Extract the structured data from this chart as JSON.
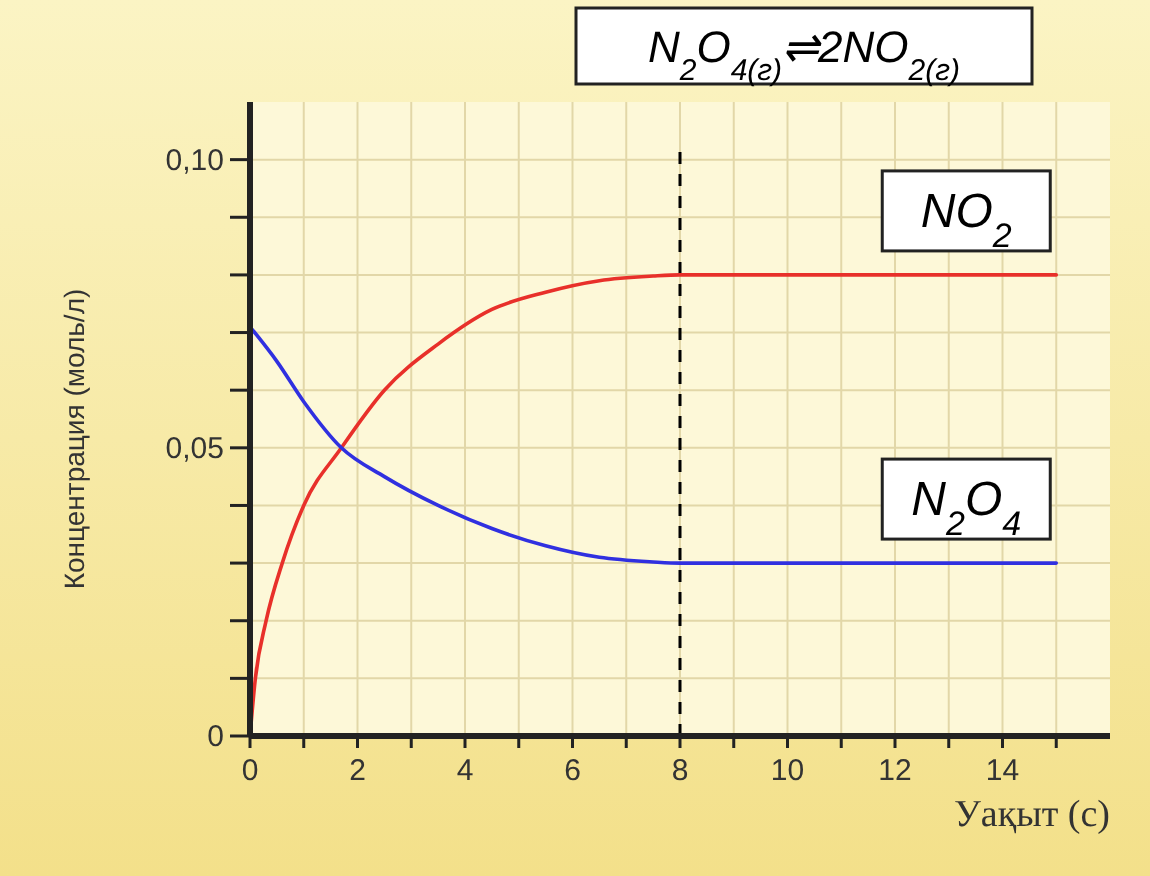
{
  "chart_data": {
    "type": "line",
    "title": "N$_{2}$O$_{4(г)}$⇌2NO$_{2(г)}$",
    "xlabel": "Уақыт (с)",
    "ylabel": "Концентрация (моль/л)",
    "xlim": [
      0,
      16
    ],
    "ylim": [
      0,
      0.11
    ],
    "xticks": [
      0,
      {
        "value": 1,
        "label": null
      },
      2,
      {
        "value": 3,
        "label": null
      },
      4,
      {
        "value": 5,
        "label": null
      },
      6,
      {
        "value": 7,
        "label": null
      },
      8,
      {
        "value": 9,
        "label": null
      },
      10,
      {
        "value": 11,
        "label": null
      },
      12,
      {
        "value": 13,
        "label": null
      },
      14,
      {
        "value": 15,
        "label": null
      }
    ],
    "yticks": [
      {
        "value": 0,
        "label": "0"
      },
      {
        "value": 0.01,
        "label": null
      },
      {
        "value": 0.02,
        "label": null
      },
      {
        "value": 0.03,
        "label": null
      },
      {
        "value": 0.04,
        "label": null
      },
      {
        "value": 0.05,
        "label": "0,05"
      },
      {
        "value": 0.06,
        "label": null
      },
      {
        "value": 0.07,
        "label": null
      },
      {
        "value": 0.08,
        "label": null
      },
      {
        "value": 0.09,
        "label": null
      },
      {
        "value": 0.1,
        "label": "0,10"
      }
    ],
    "grid": true,
    "marker": "none",
    "line_style": "solid",
    "series": [
      {
        "name": "NO$_{2}$",
        "color": "#e8302a",
        "x": [
          0,
          0.1,
          0.3,
          0.6,
          1,
          1.7,
          2.5,
          3.5,
          4.5,
          5.5,
          6.5,
          7.5,
          8,
          15
        ],
        "values": [
          0,
          0.01,
          0.02,
          0.03,
          0.04,
          0.05,
          0.06,
          0.068,
          0.074,
          0.077,
          0.079,
          0.0798,
          0.08,
          0.08
        ]
      },
      {
        "name": "N$_{2}$O$_{4}$",
        "color": "#3030e0",
        "x": [
          0,
          0.5,
          1,
          1.7,
          2.5,
          3.5,
          4.5,
          5.5,
          6.5,
          7.5,
          8,
          15
        ],
        "values": [
          0.071,
          0.065,
          0.058,
          0.05,
          0.045,
          0.04,
          0.036,
          0.033,
          0.031,
          0.0302,
          0.03,
          0.03
        ]
      }
    ],
    "ref_lines": [
      {
        "axis": "x",
        "value": 8,
        "color": "#000000",
        "line_style": "dashed"
      }
    ]
  }
}
